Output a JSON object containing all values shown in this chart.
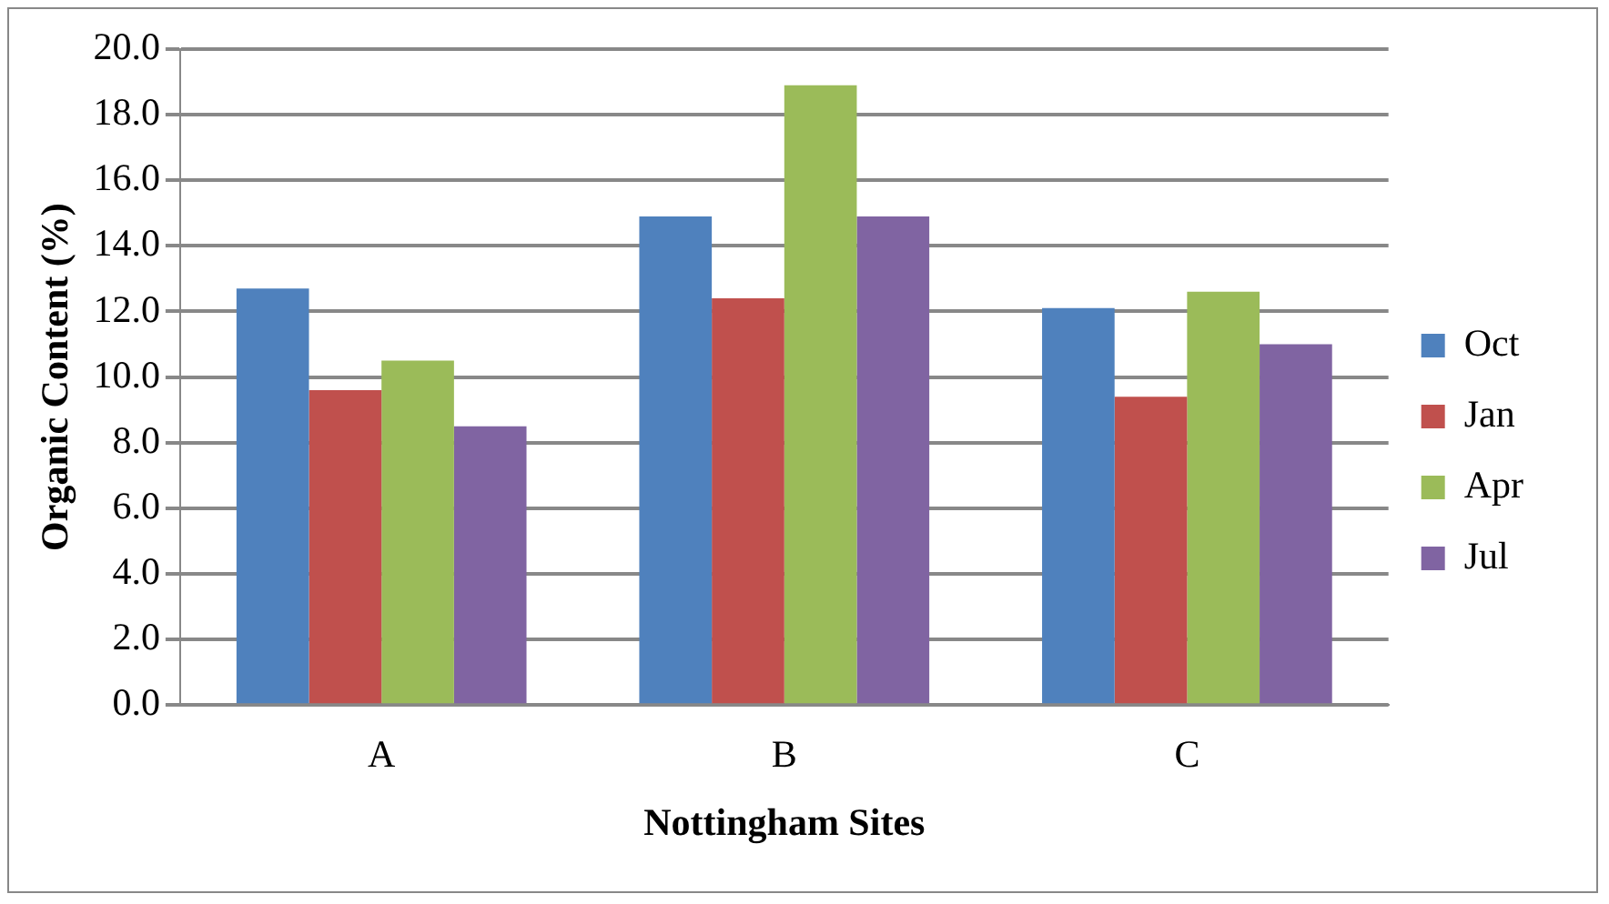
{
  "chart_data": {
    "type": "bar",
    "xlabel": "Nottingham Sites",
    "ylabel": "Organic Content (%)",
    "categories": [
      "A",
      "B",
      "C"
    ],
    "series": [
      {
        "name": "Oct",
        "color": "#4f81bd",
        "values": [
          12.7,
          14.9,
          12.1
        ]
      },
      {
        "name": "Jan",
        "color": "#c0504d",
        "values": [
          9.6,
          12.4,
          9.4
        ]
      },
      {
        "name": "Apr",
        "color": "#9bbb59",
        "values": [
          10.5,
          18.9,
          12.6
        ]
      },
      {
        "name": "Jul",
        "color": "#8064a2",
        "values": [
          8.5,
          14.9,
          11.0
        ]
      }
    ],
    "ylim": [
      0,
      20
    ],
    "yticks": [
      {
        "value": 0,
        "label": "0.0"
      },
      {
        "value": 2,
        "label": "2.0"
      },
      {
        "value": 4,
        "label": "4.0"
      },
      {
        "value": 6,
        "label": "6.0"
      },
      {
        "value": 8,
        "label": "8.0"
      },
      {
        "value": 10,
        "label": "10.0"
      },
      {
        "value": 12,
        "label": "12.0"
      },
      {
        "value": 14,
        "label": "14.0"
      },
      {
        "value": 16,
        "label": "16.0"
      },
      {
        "value": 18,
        "label": "18.0"
      },
      {
        "value": 20,
        "label": "20.0"
      }
    ],
    "grid": "y",
    "legend": "right"
  }
}
